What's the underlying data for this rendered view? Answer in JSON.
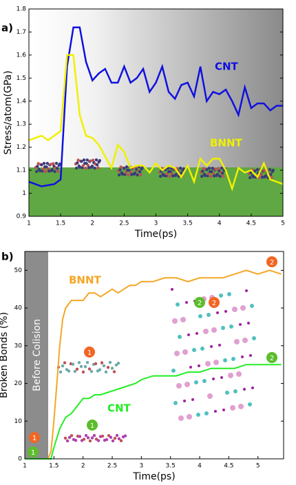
{
  "chart_data": [
    {
      "type": "line",
      "panel": "a)",
      "xlabel": "Time(ps)",
      "ylabel": "Stress/atom(GPa)",
      "xlim": [
        1,
        5
      ],
      "ylim": [
        0.9,
        1.8
      ],
      "xticks": [
        1,
        1.5,
        2,
        2.5,
        3,
        3.5,
        4,
        4.5,
        5
      ],
      "yticks": [
        0.9,
        1,
        1.1,
        1.2,
        1.3,
        1.4,
        1.5,
        1.6,
        1.7,
        1.8
      ],
      "x": [
        1.0,
        1.1,
        1.2,
        1.3,
        1.4,
        1.5,
        1.6,
        1.7,
        1.8,
        1.9,
        2.0,
        2.1,
        2.2,
        2.3,
        2.4,
        2.5,
        2.6,
        2.7,
        2.8,
        2.9,
        3.0,
        3.1,
        3.2,
        3.3,
        3.4,
        3.5,
        3.6,
        3.7,
        3.8,
        3.9,
        4.0,
        4.1,
        4.2,
        4.3,
        4.4,
        4.5,
        4.6,
        4.7,
        4.8,
        4.9,
        5.0
      ],
      "series": [
        {
          "name": "CNT",
          "color": "#1010e0",
          "values": [
            1.05,
            1.04,
            1.03,
            1.035,
            1.04,
            1.06,
            1.55,
            1.72,
            1.72,
            1.57,
            1.49,
            1.52,
            1.54,
            1.48,
            1.48,
            1.55,
            1.48,
            1.5,
            1.54,
            1.44,
            1.48,
            1.55,
            1.44,
            1.41,
            1.47,
            1.48,
            1.42,
            1.55,
            1.4,
            1.44,
            1.43,
            1.45,
            1.4,
            1.34,
            1.46,
            1.37,
            1.39,
            1.39,
            1.36,
            1.38,
            1.38
          ]
        },
        {
          "name": "BNNT",
          "color": "#f0f000",
          "values": [
            1.23,
            1.24,
            1.25,
            1.23,
            1.25,
            1.27,
            1.6,
            1.6,
            1.34,
            1.25,
            1.24,
            1.21,
            1.16,
            1.11,
            1.21,
            1.18,
            1.11,
            1.12,
            1.12,
            1.09,
            1.13,
            1.1,
            1.12,
            1.11,
            1.07,
            1.12,
            1.05,
            1.15,
            1.12,
            1.15,
            1.15,
            1.1,
            1.02,
            1.11,
            1.09,
            1.1,
            1.07,
            1.13,
            1.06,
            1.05,
            1.04
          ]
        }
      ]
    },
    {
      "type": "line",
      "panel": "b)",
      "xlabel": "Time(ps)",
      "ylabel": "Broken Bonds (%)",
      "band_label": "Before Colision",
      "xlim": [
        1,
        5.44
      ],
      "ylim": [
        0,
        55
      ],
      "xticks": [
        1,
        1.5,
        2,
        2.5,
        3,
        3.5,
        4,
        4.5,
        5
      ],
      "yticks": [
        0,
        10,
        20,
        30,
        40,
        50
      ],
      "badges": [
        "1",
        "1",
        "1",
        "1",
        "2",
        "2",
        "2",
        "2"
      ],
      "series": [
        {
          "name": "BNNT",
          "color": "#f5a623",
          "x": [
            1.0,
            1.4,
            1.45,
            1.5,
            1.55,
            1.6,
            1.65,
            1.7,
            1.75,
            1.8,
            1.9,
            2.0,
            2.1,
            2.2,
            2.3,
            2.4,
            2.5,
            2.6,
            2.7,
            2.8,
            2.9,
            3.0,
            3.2,
            3.4,
            3.6,
            3.8,
            4.0,
            4.2,
            4.4,
            4.6,
            4.8,
            5.0,
            5.2,
            5.4
          ],
          "values": [
            0,
            0,
            2,
            10,
            20,
            30,
            37,
            40,
            41,
            42,
            42,
            42,
            44,
            44,
            43,
            44,
            45,
            44,
            45,
            46,
            46,
            47,
            47,
            48,
            48,
            47,
            48,
            48,
            48,
            49,
            50,
            49,
            50,
            49
          ]
        },
        {
          "name": "CNT",
          "color": "#22ee22",
          "x": [
            1.0,
            1.45,
            1.5,
            1.6,
            1.7,
            1.8,
            1.9,
            2.0,
            2.1,
            2.2,
            2.3,
            2.5,
            2.7,
            2.9,
            3.0,
            3.2,
            3.4,
            3.6,
            3.8,
            4.0,
            4.2,
            4.4,
            4.6,
            4.8,
            5.0,
            5.4
          ],
          "values": [
            0,
            0,
            3,
            8,
            11,
            12,
            14,
            16,
            16,
            17,
            17,
            18,
            19,
            20,
            21,
            22,
            22,
            22,
            23,
            23,
            24,
            24,
            24,
            25,
            25,
            25
          ]
        }
      ]
    }
  ]
}
